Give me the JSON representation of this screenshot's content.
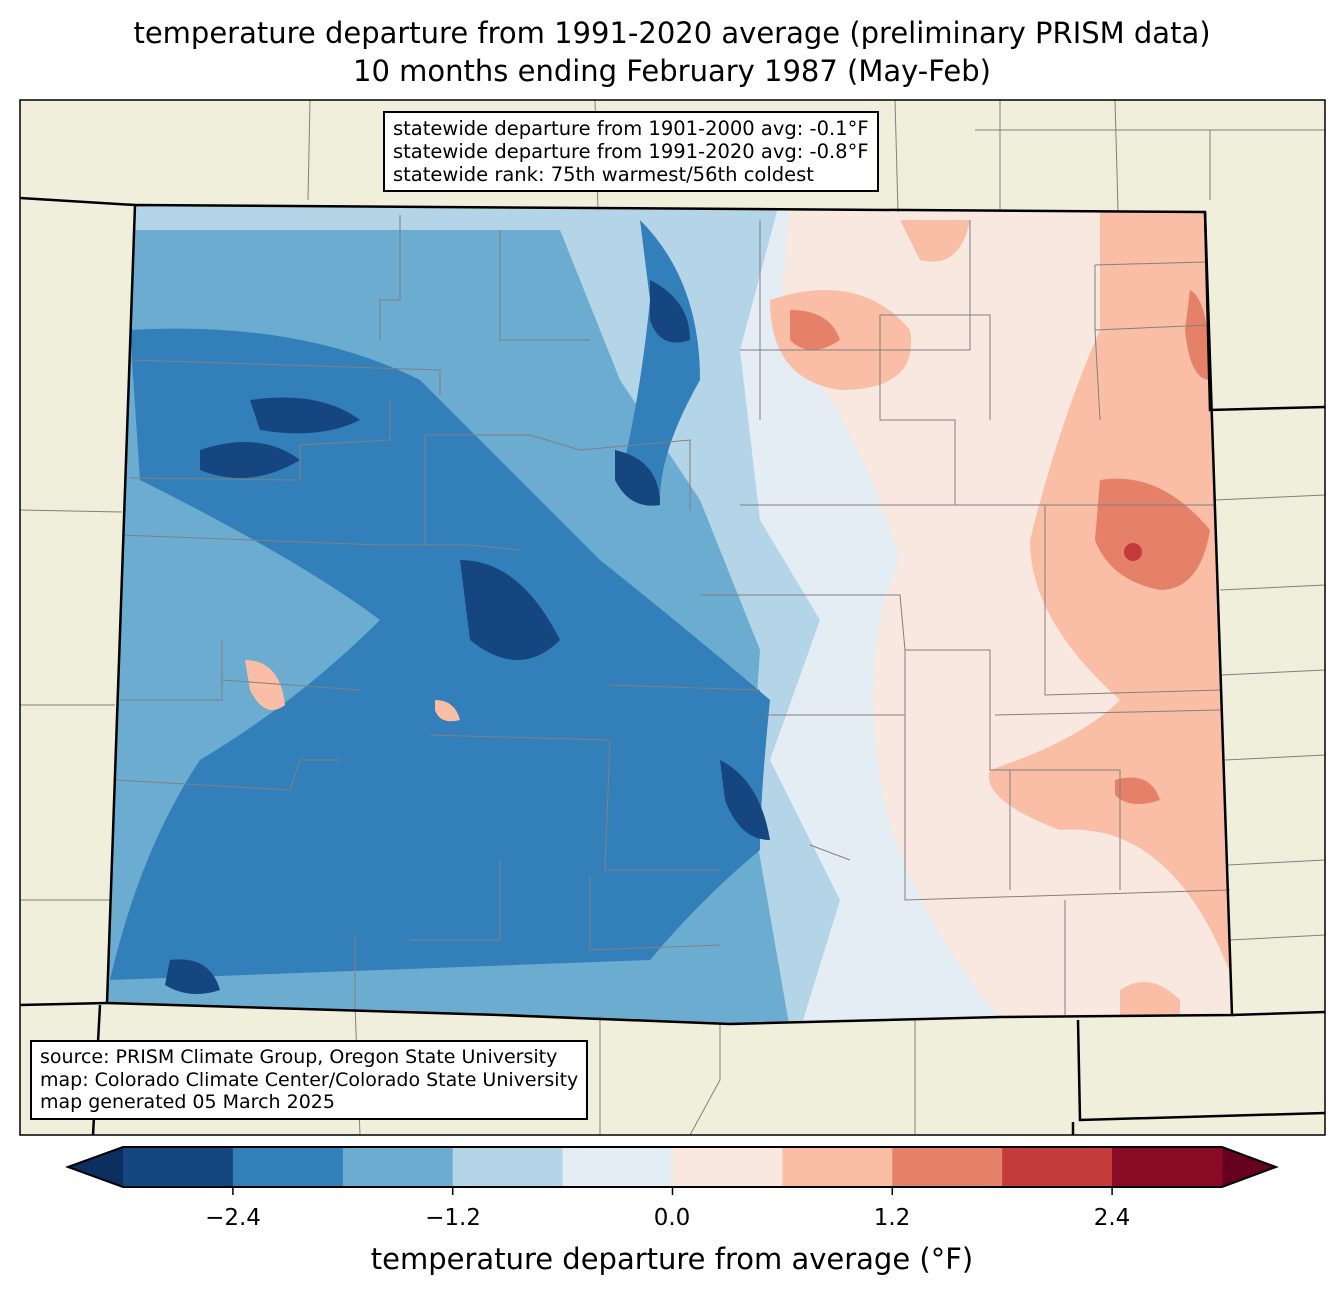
{
  "title": {
    "line1": "temperature departure from 1991-2020 average (preliminary PRISM data)",
    "line2": "10 months ending February 1987 (May-Feb)"
  },
  "stats": {
    "line1": "statewide departure from 1901-2000 avg: -0.1°F",
    "line2": "statewide departure from 1991-2020 avg: -0.8°F",
    "line3": "statewide rank: 75th warmest/56th coldest"
  },
  "credits": {
    "line1": "source: PRISM Climate Group, Oregon State University",
    "line2": "map: Colorado Climate Center/Colorado State University",
    "line3": "map generated 05 March 2025"
  },
  "colorbar": {
    "label": "temperature departure from average (°F)",
    "ticks": [
      "−2.4",
      "−1.2",
      "0.0",
      "1.2",
      "2.4"
    ],
    "levels": [
      -3.0,
      -2.4,
      -1.8,
      -1.2,
      -0.6,
      0.0,
      0.6,
      1.2,
      1.8,
      2.4,
      3.0
    ],
    "colors": [
      "#15467f",
      "#327fb9",
      "#6bacd0",
      "#b3d5e7",
      "#e5edf4",
      "#f9e8df",
      "#f9bea5",
      "#e58168",
      "#c43b3c",
      "#8a0b25"
    ],
    "extend_low_color": "#0b3060",
    "extend_high_color": "#670020"
  },
  "colors": {
    "land": "#f0efdc",
    "county_lines": "#808080"
  }
}
